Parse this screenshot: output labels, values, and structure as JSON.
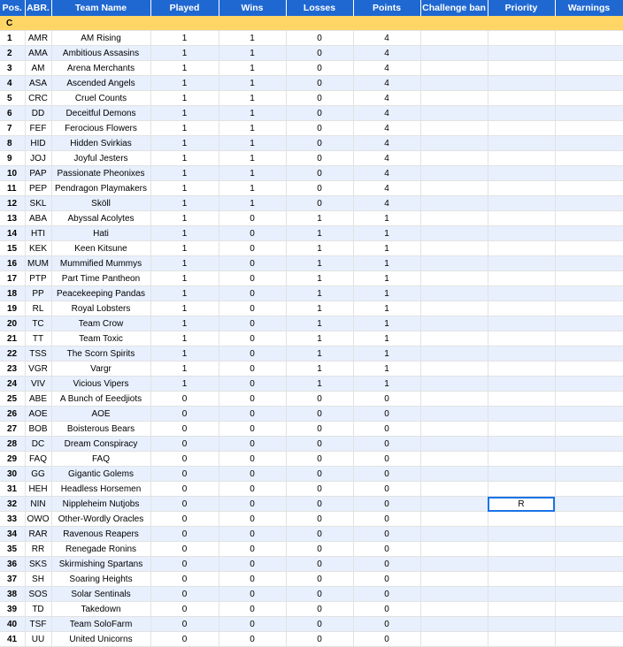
{
  "columns": [
    "Pos.",
    "ABR.",
    "Team Name",
    "Played",
    "Wins",
    "Losses",
    "Points",
    "Challenge ban",
    "Priority",
    "Warnings"
  ],
  "group_label": "C",
  "rows": [
    {
      "pos": "1",
      "abr": "AMR",
      "name": "AM Rising",
      "played": "1",
      "wins": "1",
      "losses": "0",
      "points": "4",
      "ban": "",
      "priority": "",
      "warnings": ""
    },
    {
      "pos": "2",
      "abr": "AMA",
      "name": "Ambitious Assasins",
      "played": "1",
      "wins": "1",
      "losses": "0",
      "points": "4",
      "ban": "",
      "priority": "",
      "warnings": ""
    },
    {
      "pos": "3",
      "abr": "AM",
      "name": "Arena Merchants",
      "played": "1",
      "wins": "1",
      "losses": "0",
      "points": "4",
      "ban": "",
      "priority": "",
      "warnings": ""
    },
    {
      "pos": "4",
      "abr": "ASA",
      "name": "Ascended Angels",
      "played": "1",
      "wins": "1",
      "losses": "0",
      "points": "4",
      "ban": "",
      "priority": "",
      "warnings": ""
    },
    {
      "pos": "5",
      "abr": "CRC",
      "name": "Cruel Counts",
      "played": "1",
      "wins": "1",
      "losses": "0",
      "points": "4",
      "ban": "",
      "priority": "",
      "warnings": ""
    },
    {
      "pos": "6",
      "abr": "DD",
      "name": "Deceitful Demons",
      "played": "1",
      "wins": "1",
      "losses": "0",
      "points": "4",
      "ban": "",
      "priority": "",
      "warnings": ""
    },
    {
      "pos": "7",
      "abr": "FEF",
      "name": "Ferocious Flowers",
      "played": "1",
      "wins": "1",
      "losses": "0",
      "points": "4",
      "ban": "",
      "priority": "",
      "warnings": ""
    },
    {
      "pos": "8",
      "abr": "HID",
      "name": "Hidden Svirkias",
      "played": "1",
      "wins": "1",
      "losses": "0",
      "points": "4",
      "ban": "",
      "priority": "",
      "warnings": ""
    },
    {
      "pos": "9",
      "abr": "JOJ",
      "name": "Joyful Jesters",
      "played": "1",
      "wins": "1",
      "losses": "0",
      "points": "4",
      "ban": "",
      "priority": "",
      "warnings": ""
    },
    {
      "pos": "10",
      "abr": "PAP",
      "name": "Passionate Pheonixes",
      "played": "1",
      "wins": "1",
      "losses": "0",
      "points": "4",
      "ban": "",
      "priority": "",
      "warnings": ""
    },
    {
      "pos": "11",
      "abr": "PEP",
      "name": "Pendragon Playmakers",
      "played": "1",
      "wins": "1",
      "losses": "0",
      "points": "4",
      "ban": "",
      "priority": "",
      "warnings": ""
    },
    {
      "pos": "12",
      "abr": "SKL",
      "name": "Sköll",
      "played": "1",
      "wins": "1",
      "losses": "0",
      "points": "4",
      "ban": "",
      "priority": "",
      "warnings": ""
    },
    {
      "pos": "13",
      "abr": "ABA",
      "name": "Abyssal Acolytes",
      "played": "1",
      "wins": "0",
      "losses": "1",
      "points": "1",
      "ban": "",
      "priority": "",
      "warnings": ""
    },
    {
      "pos": "14",
      "abr": "HTI",
      "name": "Hati",
      "played": "1",
      "wins": "0",
      "losses": "1",
      "points": "1",
      "ban": "",
      "priority": "",
      "warnings": ""
    },
    {
      "pos": "15",
      "abr": "KEK",
      "name": "Keen Kitsune",
      "played": "1",
      "wins": "0",
      "losses": "1",
      "points": "1",
      "ban": "",
      "priority": "",
      "warnings": ""
    },
    {
      "pos": "16",
      "abr": "MUM",
      "name": "Mummified Mummys",
      "played": "1",
      "wins": "0",
      "losses": "1",
      "points": "1",
      "ban": "",
      "priority": "",
      "warnings": ""
    },
    {
      "pos": "17",
      "abr": "PTP",
      "name": "Part Time Pantheon",
      "played": "1",
      "wins": "0",
      "losses": "1",
      "points": "1",
      "ban": "",
      "priority": "",
      "warnings": ""
    },
    {
      "pos": "18",
      "abr": "PP",
      "name": "Peacekeeping Pandas",
      "played": "1",
      "wins": "0",
      "losses": "1",
      "points": "1",
      "ban": "",
      "priority": "",
      "warnings": ""
    },
    {
      "pos": "19",
      "abr": "RL",
      "name": "Royal Lobsters",
      "played": "1",
      "wins": "0",
      "losses": "1",
      "points": "1",
      "ban": "",
      "priority": "",
      "warnings": ""
    },
    {
      "pos": "20",
      "abr": "TC",
      "name": "Team Crow",
      "played": "1",
      "wins": "0",
      "losses": "1",
      "points": "1",
      "ban": "",
      "priority": "",
      "warnings": ""
    },
    {
      "pos": "21",
      "abr": "TT",
      "name": "Team Toxic",
      "played": "1",
      "wins": "0",
      "losses": "1",
      "points": "1",
      "ban": "",
      "priority": "",
      "warnings": ""
    },
    {
      "pos": "22",
      "abr": "TSS",
      "name": "The Scorn Spirits",
      "played": "1",
      "wins": "0",
      "losses": "1",
      "points": "1",
      "ban": "",
      "priority": "",
      "warnings": ""
    },
    {
      "pos": "23",
      "abr": "VGR",
      "name": "Vargr",
      "played": "1",
      "wins": "0",
      "losses": "1",
      "points": "1",
      "ban": "",
      "priority": "",
      "warnings": ""
    },
    {
      "pos": "24",
      "abr": "VIV",
      "name": "Vicious Vipers",
      "played": "1",
      "wins": "0",
      "losses": "1",
      "points": "1",
      "ban": "",
      "priority": "",
      "warnings": ""
    },
    {
      "pos": "25",
      "abr": "ABE",
      "name": "A Bunch of Eeedjiots",
      "played": "0",
      "wins": "0",
      "losses": "0",
      "points": "0",
      "ban": "",
      "priority": "",
      "warnings": ""
    },
    {
      "pos": "26",
      "abr": "AOE",
      "name": "AOE",
      "played": "0",
      "wins": "0",
      "losses": "0",
      "points": "0",
      "ban": "",
      "priority": "",
      "warnings": ""
    },
    {
      "pos": "27",
      "abr": "BOB",
      "name": "Boisterous Bears",
      "played": "0",
      "wins": "0",
      "losses": "0",
      "points": "0",
      "ban": "",
      "priority": "",
      "warnings": ""
    },
    {
      "pos": "28",
      "abr": "DC",
      "name": "Dream Conspiracy",
      "played": "0",
      "wins": "0",
      "losses": "0",
      "points": "0",
      "ban": "",
      "priority": "",
      "warnings": ""
    },
    {
      "pos": "29",
      "abr": "FAQ",
      "name": "FAQ",
      "played": "0",
      "wins": "0",
      "losses": "0",
      "points": "0",
      "ban": "",
      "priority": "",
      "warnings": ""
    },
    {
      "pos": "30",
      "abr": "GG",
      "name": "Gigantic Golems",
      "played": "0",
      "wins": "0",
      "losses": "0",
      "points": "0",
      "ban": "",
      "priority": "",
      "warnings": ""
    },
    {
      "pos": "31",
      "abr": "HEH",
      "name": "Headless Horsemen",
      "played": "0",
      "wins": "0",
      "losses": "0",
      "points": "0",
      "ban": "",
      "priority": "",
      "warnings": ""
    },
    {
      "pos": "32",
      "abr": "NIN",
      "name": "Nippleheim Nutjobs",
      "played": "0",
      "wins": "0",
      "losses": "0",
      "points": "0",
      "ban": "",
      "priority": "R",
      "warnings": ""
    },
    {
      "pos": "33",
      "abr": "OWO",
      "name": "Other-Wordly Oracles",
      "played": "0",
      "wins": "0",
      "losses": "0",
      "points": "0",
      "ban": "",
      "priority": "",
      "warnings": ""
    },
    {
      "pos": "34",
      "abr": "RAR",
      "name": "Ravenous Reapers",
      "played": "0",
      "wins": "0",
      "losses": "0",
      "points": "0",
      "ban": "",
      "priority": "",
      "warnings": ""
    },
    {
      "pos": "35",
      "abr": "RR",
      "name": "Renegade Ronins",
      "played": "0",
      "wins": "0",
      "losses": "0",
      "points": "0",
      "ban": "",
      "priority": "",
      "warnings": ""
    },
    {
      "pos": "36",
      "abr": "SKS",
      "name": "Skirmishing Spartans",
      "played": "0",
      "wins": "0",
      "losses": "0",
      "points": "0",
      "ban": "",
      "priority": "",
      "warnings": ""
    },
    {
      "pos": "37",
      "abr": "SH",
      "name": "Soaring Heights",
      "played": "0",
      "wins": "0",
      "losses": "0",
      "points": "0",
      "ban": "",
      "priority": "",
      "warnings": ""
    },
    {
      "pos": "38",
      "abr": "SOS",
      "name": "Solar Sentinals",
      "played": "0",
      "wins": "0",
      "losses": "0",
      "points": "0",
      "ban": "",
      "priority": "",
      "warnings": ""
    },
    {
      "pos": "39",
      "abr": "TD",
      "name": "Takedown",
      "played": "0",
      "wins": "0",
      "losses": "0",
      "points": "0",
      "ban": "",
      "priority": "",
      "warnings": ""
    },
    {
      "pos": "40",
      "abr": "TSF",
      "name": "Team SoloFarm",
      "played": "0",
      "wins": "0",
      "losses": "0",
      "points": "0",
      "ban": "",
      "priority": "",
      "warnings": ""
    },
    {
      "pos": "41",
      "abr": "UU",
      "name": "United Unicorns",
      "played": "0",
      "wins": "0",
      "losses": "0",
      "points": "0",
      "ban": "",
      "priority": "",
      "warnings": ""
    }
  ],
  "separator_after": [
    "8",
    "16",
    "24",
    "32",
    "40"
  ],
  "selected_cell": {
    "row": "32",
    "column": "Priority"
  },
  "colors": {
    "header_bg": "#1f68d1",
    "group_bg": "#ffd666",
    "alt_row_bg": "#e8f0fe",
    "selection": "#1a73e8"
  }
}
